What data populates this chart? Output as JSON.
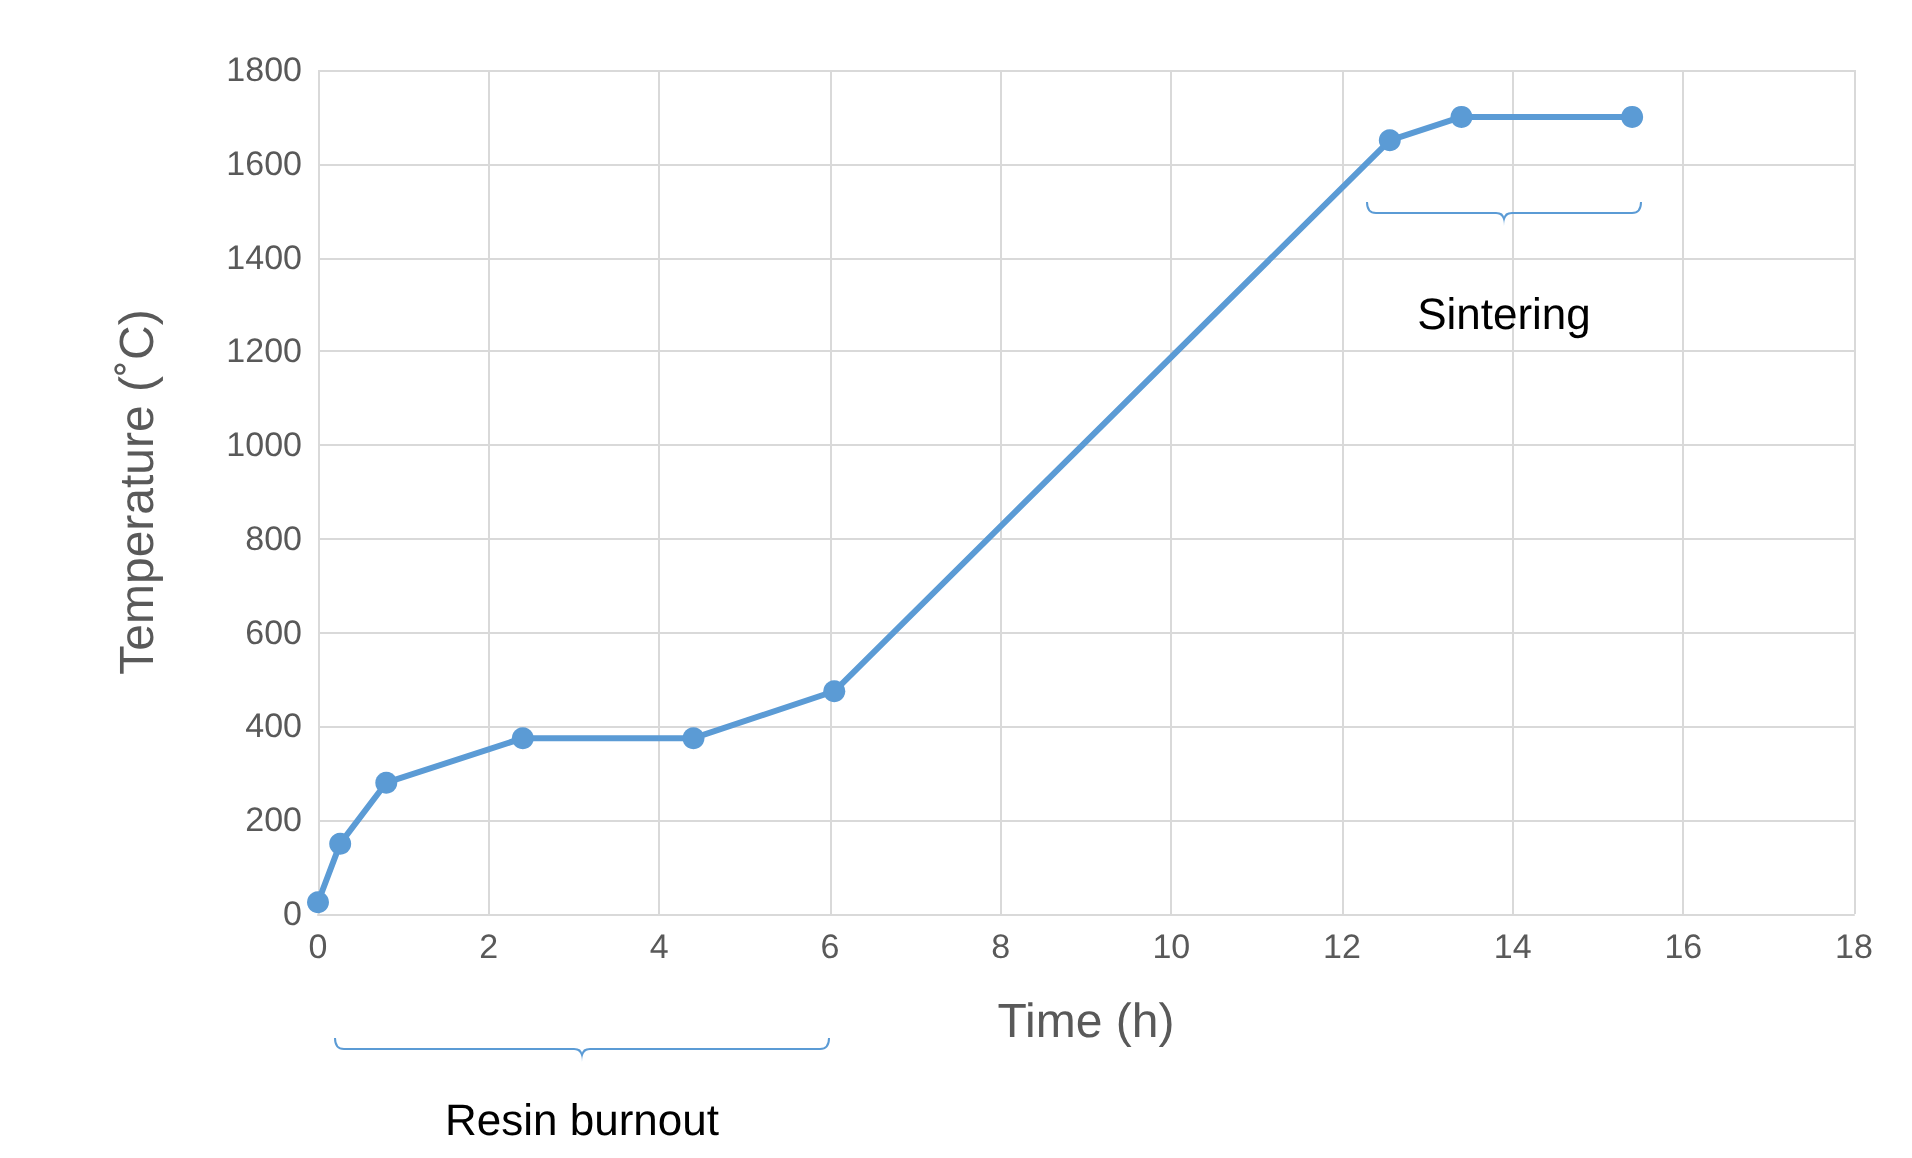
{
  "chart_data": {
    "type": "line",
    "xlabel": "Time (h)",
    "ylabel": "Temperature (˚C)",
    "x": [
      0,
      0.26,
      0.8,
      2.4,
      4.4,
      6.05,
      12.56,
      13.4,
      15.4
    ],
    "series": [
      {
        "color": "#5b9bd5",
        "values": [
          25,
          150,
          280,
          375,
          375,
          475,
          1650,
          1700,
          1700
        ]
      }
    ],
    "xlim": [
      0,
      18
    ],
    "xticks": [
      0,
      2,
      4,
      6,
      8,
      10,
      12,
      14,
      16,
      18
    ],
    "ylim": [
      0,
      1800
    ],
    "yticks": [
      0,
      200,
      400,
      600,
      800,
      1000,
      1200,
      1400,
      1600,
      1800
    ],
    "grid": true,
    "marker": "circle",
    "line_style": "solid",
    "annotations": [
      "Resin burnout",
      "Sintering"
    ]
  }
}
